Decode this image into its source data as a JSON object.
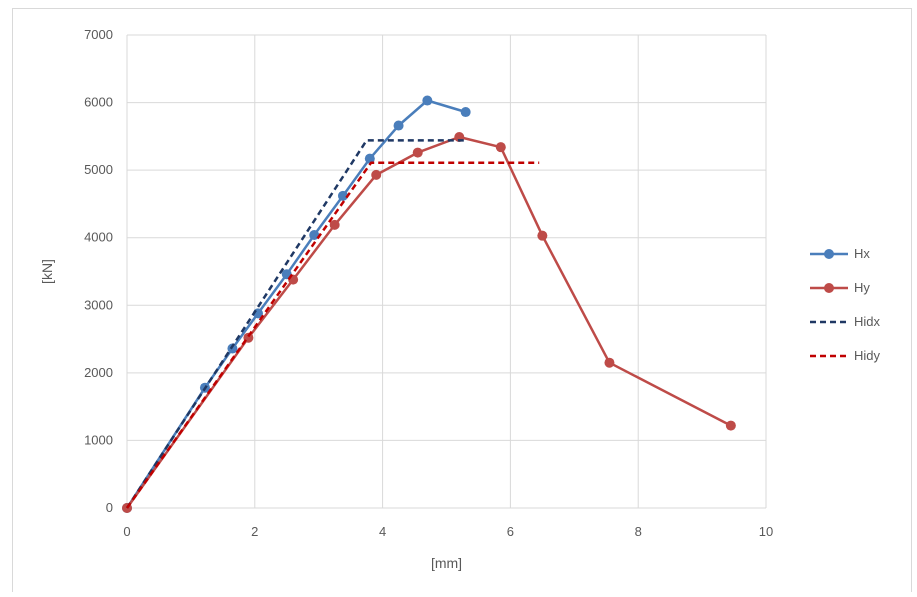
{
  "chart_data": {
    "type": "line",
    "title": "",
    "xlabel": "[mm]",
    "ylabel": "[kN]",
    "xlim": [
      0,
      10
    ],
    "ylim": [
      0,
      7000
    ],
    "x_ticks": [
      0,
      2,
      4,
      6,
      8,
      10
    ],
    "y_ticks": [
      0,
      1000,
      2000,
      3000,
      4000,
      5000,
      6000,
      7000
    ],
    "grid": true,
    "legend_position": "right",
    "series": [
      {
        "name": "Hx",
        "color": "#4a7ebb",
        "style": "solid",
        "markers": true,
        "x": [
          0,
          1.22,
          1.65,
          2.05,
          2.5,
          2.93,
          3.38,
          3.8,
          4.25,
          4.7,
          5.3
        ],
        "y": [
          0,
          1780,
          2360,
          2880,
          3460,
          4040,
          4620,
          5170,
          5660,
          6030,
          5860
        ]
      },
      {
        "name": "Hy",
        "color": "#be4b48",
        "style": "solid",
        "markers": true,
        "x": [
          0,
          1.9,
          2.6,
          3.25,
          3.9,
          4.55,
          5.2,
          5.85,
          6.5,
          7.55,
          9.45
        ],
        "y": [
          0,
          2520,
          3380,
          4190,
          4930,
          5260,
          5490,
          5340,
          4030,
          2150,
          1220
        ]
      },
      {
        "name": "Hidx",
        "color": "#1f3864",
        "style": "dashed",
        "markers": false,
        "x": [
          0,
          3.75,
          5.3
        ],
        "y": [
          0,
          5440,
          5440
        ]
      },
      {
        "name": "Hidy",
        "color": "#c00000",
        "style": "dashed",
        "markers": false,
        "x": [
          0,
          3.82,
          6.45
        ],
        "y": [
          0,
          5110,
          5110
        ]
      }
    ]
  }
}
